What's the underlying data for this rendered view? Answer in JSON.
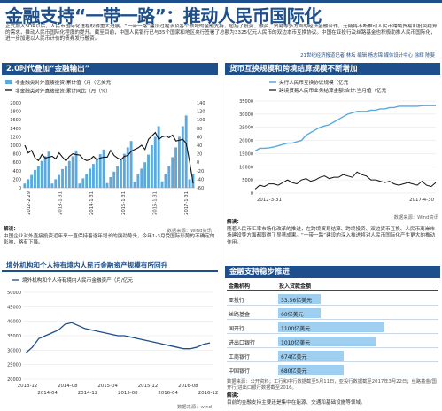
{
  "title": "金融支持“一带一路”：推动人民币国际化",
  "intro": "正式加入SDR以后，人民币国际化进程取得重大进展。“一带一路”建设过程涉及各个领域的金融支持，包括了投资、融资、贸易等多方面的经济金融合作，无疑将不断推动人民币跨境贸易和投资结算的需求，推动人民币国际化程度的提升。截至目前，中国人民银行已与35个国家和地区央行签署了总额为3325亿元人民币的双边本币互换协议。中国在亚投行及丝路基金也积极助推人民币国际化，进一步加速以人民币计价的债券发行融资。",
  "credit": "21世纪经济报道记者 林坛 编辑 杨志锦 媒体设计中心 徐辉 陈斐",
  "colors": {
    "primary": "#1d4f8c",
    "bar": "#5aa9df",
    "line": "#1d4f8c",
    "dark": "#111111",
    "tablebar": "#9fcff0"
  },
  "panel1": {
    "heading": "2.0时代叠加“金融输出”",
    "chart_data": {
      "type": "bar",
      "x_ticks": [
        "2012-2-29",
        "2013-1-31",
        "2014-1-31",
        "2015-1-31",
        "2016-1-31",
        "2017-1-31"
      ],
      "series": [
        {
          "name": "非金融类对外直接投资:累计值（月（亿美元",
          "values": [
            100,
            200,
            300,
            420,
            520,
            630,
            740,
            850,
            100,
            200,
            300,
            440,
            520,
            630,
            740,
            880,
            100,
            220,
            330,
            450,
            560,
            680,
            790,
            900,
            110,
            250,
            380,
            520,
            660,
            800,
            950,
            1100,
            140,
            310,
            450,
            600,
            780,
            1000,
            1200,
            1450,
            150,
            330,
            520,
            720,
            950,
            1200,
            1450,
            1700,
            200,
            330
          ]
        },
        {
          "name": "非金融类对外直接投资:累计同比（月（%）",
          "values": [
            40,
            22,
            28,
            10,
            4,
            18,
            10,
            12,
            14,
            8,
            22,
            12,
            3,
            14,
            20,
            18,
            17,
            8,
            4,
            6,
            14,
            6,
            10,
            12,
            12,
            28,
            16,
            10,
            6,
            14,
            16,
            26,
            30,
            34,
            40,
            30,
            54,
            62,
            70,
            54,
            60,
            62,
            58,
            64,
            50,
            52,
            54,
            44,
            0,
            -50
          ]
        }
      ],
      "yleft_ticks": [
        0,
        200,
        400,
        600,
        800,
        1000,
        1200,
        1400,
        1600,
        1800,
        2000
      ],
      "yright_ticks": [
        -60,
        -40,
        -20,
        0,
        20,
        40,
        60,
        80,
        100,
        120,
        140
      ],
      "ylim_left": [
        0,
        2000
      ],
      "ylim_right": [
        -60,
        140
      ]
    },
    "source": "数据来源：Wind资讯",
    "note_title": "解读：",
    "note": "中国企业对外直接投资近年来一直保持着逐年增长的强劲势头，今年1-3月受国际形势的不确定的影响，略有下降。"
  },
  "panel2": {
    "heading": "货币互换规模和跨境结算规模不断增加",
    "chart_data": {
      "type": "line",
      "x_ticks": [
        "2012-3-31",
        "2017-4-30"
      ],
      "series": [
        {
          "name": "央行人民币互换协议规模（亿元",
          "values": [
            16000,
            17000,
            17000,
            17200,
            17500,
            18000,
            18500,
            19000,
            19000,
            19500,
            20000,
            22000,
            23000,
            24000,
            25000,
            25500,
            26000,
            27000,
            28000,
            29000,
            30000,
            30500,
            31000,
            31000,
            31000,
            31500,
            31500,
            32000,
            32000,
            32500,
            32500,
            33000,
            33000,
            33000,
            33000,
            33000,
            33200,
            33300,
            33250,
            33250
          ]
        },
        {
          "name": "跨境贸易人民币业务结算金额:合计:当月值（亿元",
          "values": [
            1500,
            3000,
            2500,
            3500,
            3500,
            3000,
            4000,
            5000,
            4000,
            3500,
            5000,
            5500,
            4500,
            5000,
            6000,
            6500,
            5500,
            6000,
            6000,
            7000,
            6500,
            6000,
            8000,
            7000,
            6500,
            5000,
            5000,
            4500,
            4000,
            4500,
            3500,
            3000,
            3500,
            4000,
            3500,
            3000,
            4500,
            3000,
            2500,
            4000
          ]
        }
      ],
      "y_ticks": [
        0,
        5000,
        10000,
        15000,
        20000,
        25000,
        30000,
        35000
      ],
      "ylim": [
        0,
        35000
      ]
    },
    "source": "数据来源：Wind资讯",
    "note_title": "解读：",
    "note": "随着人民币汇率市场化改革的推进，在跨境贸易结算、跨境投资、双边货币互换、人民币离岸市场建设等方面都取得了显著成果。“一带一路”建设的深入推进将对人民币国际化产生更大的推动作用。"
  },
  "panel3": {
    "heading": "境外机构和个人持有境内人民币金融资产规模有所回升",
    "chart_data": {
      "type": "line",
      "x_ticks": [
        "2013-12",
        "2014-04",
        "2014-08",
        "2014-12",
        "2015-04",
        "2015-08",
        "2015-12",
        "2016-04",
        "2016-08",
        "2016-12"
      ],
      "series": [
        {
          "name": "境外机构和个人持有境内人民币金融资产（月/亿元",
          "values": [
            29000,
            31000,
            34000,
            35000,
            36000,
            37000,
            39000,
            39500,
            38500,
            37500,
            37000,
            36500,
            36000,
            35500,
            35000,
            35000,
            34500,
            34000,
            33500,
            33000,
            32500,
            32000,
            31500,
            31000,
            30500,
            30500,
            31000,
            32000,
            32500
          ]
        }
      ],
      "y_ticks": [
        20000,
        25000,
        30000,
        35000,
        40000,
        45000,
        50000
      ],
      "ylim": [
        20000,
        50000
      ]
    },
    "source": "数据来源：wind"
  },
  "panel4": {
    "heading": "金融支持稳步推进",
    "col1": "金融机构",
    "col2": "投入贷款金额",
    "rows": [
      {
        "name": "亚投行",
        "amount": "33.56亿美元",
        "value": 33.56
      },
      {
        "name": "丝路基金",
        "amount": "60亿美元",
        "value": 60
      },
      {
        "name": "国开行",
        "amount": "1100亿美元",
        "value": 1100
      },
      {
        "name": "进出口银行",
        "amount": "1010亿美元",
        "value": 1010
      },
      {
        "name": "工商银行",
        "amount": "674亿美元",
        "value": 674
      },
      {
        "name": "中国银行",
        "amount": "680亿美元",
        "value": 680
      }
    ],
    "source": "数据来源：公开资料；工行和中行数据截至5月11日，亚投行数据截至2017年3月22日；丝路基金/国开行/进出口银行数据截至2016。",
    "note_title": "解读：",
    "note": "目前的金融支持主要还是集中在能源、交通和基础设施等领域。"
  }
}
